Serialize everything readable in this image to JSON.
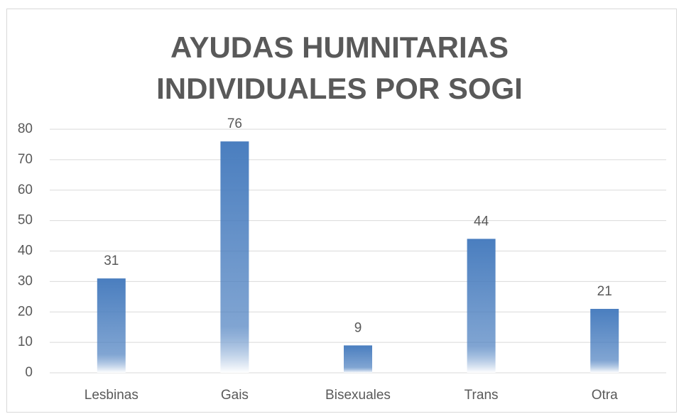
{
  "chart_data": {
    "type": "bar",
    "title": "AYUDAS HUMNITARIAS INDIVIDUALES POR SOGI",
    "categories": [
      "Lesbinas",
      "Gais",
      "Bisexuales",
      "Trans",
      "Otra"
    ],
    "values": [
      31,
      76,
      9,
      44,
      21
    ],
    "color": "#4a7ebf",
    "ylim": [
      0,
      80
    ],
    "yticks": [
      0,
      10,
      20,
      30,
      40,
      50,
      60,
      70,
      80
    ],
    "grid": true
  }
}
